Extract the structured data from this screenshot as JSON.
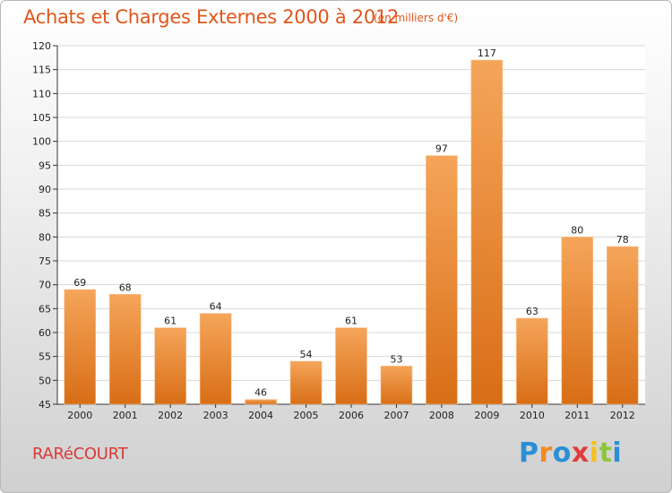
{
  "title": "Achats et Charges Externes 2000 à 2012",
  "subtitle": "(en milliers d'€)",
  "commune": "RARéCOURT",
  "logo": {
    "letters": [
      "P",
      "r",
      "o",
      "x",
      "i",
      "t",
      "i"
    ],
    "colors": [
      "#2a8fd6",
      "#f08a24",
      "#2a8fd6",
      "#e23b3b",
      "#f4c21c",
      "#8dc63f",
      "#2a8fd6"
    ]
  },
  "colors": {
    "bar_top": "#f5a55a",
    "bar_bottom": "#d86e16",
    "title": "#e0561a",
    "commune": "#d83a3a"
  },
  "chart_data": {
    "type": "bar",
    "categories": [
      "2000",
      "2001",
      "2002",
      "2003",
      "2004",
      "2005",
      "2006",
      "2007",
      "2008",
      "2009",
      "2010",
      "2011",
      "2012"
    ],
    "values": [
      69,
      68,
      61,
      64,
      46,
      54,
      61,
      53,
      97,
      117,
      63,
      80,
      78
    ],
    "ylim": [
      45,
      120
    ],
    "yticks": [
      45,
      50,
      55,
      60,
      65,
      70,
      75,
      80,
      85,
      90,
      95,
      100,
      105,
      110,
      115,
      120
    ],
    "grid": true,
    "data_labels": true
  }
}
